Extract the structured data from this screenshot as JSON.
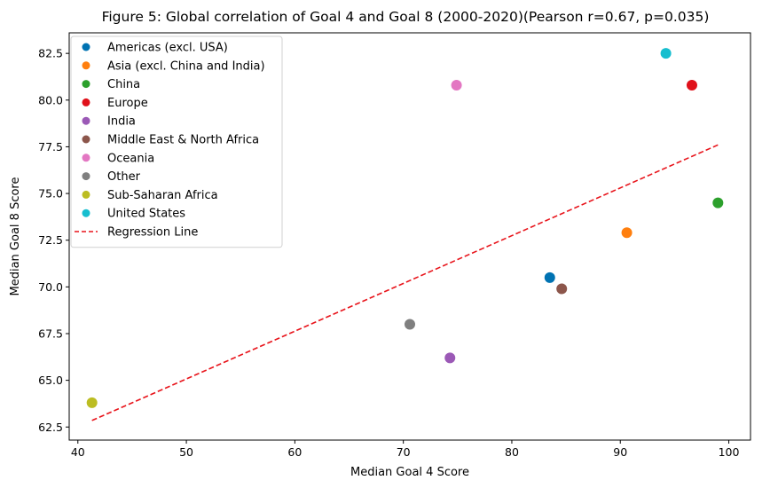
{
  "chart_data": {
    "type": "scatter",
    "title": "Figure 5: Global correlation of Goal 4 and Goal 8 (2000-2020)(Pearson r=0.67, p=0.035)",
    "xlabel": "Median Goal 4 Score",
    "ylabel": "Median Goal 8 Score",
    "xlim": [
      39.2,
      102
    ],
    "ylim": [
      61.8,
      83.6
    ],
    "xticks": [
      40,
      50,
      60,
      70,
      80,
      90,
      100
    ],
    "xtick_labels": [
      "40",
      "50",
      "60",
      "70",
      "80",
      "90",
      "100"
    ],
    "yticks": [
      62.5,
      65.0,
      67.5,
      70.0,
      72.5,
      75.0,
      77.5,
      80.0,
      82.5
    ],
    "ytick_labels": [
      "62.5",
      "65.0",
      "67.5",
      "70.0",
      "72.5",
      "75.0",
      "77.5",
      "80.0",
      "82.5"
    ],
    "grid": false,
    "legend_position": "top-left",
    "series": [
      {
        "name": "Americas (excl. USA)",
        "color": "#0072b2",
        "x": 83.5,
        "y": 70.5
      },
      {
        "name": "Asia (excl. China and India)",
        "color": "#ff7f0e",
        "x": 90.6,
        "y": 72.9
      },
      {
        "name": "China",
        "color": "#2ca02c",
        "x": 99.0,
        "y": 74.5
      },
      {
        "name": "Europe",
        "color": "#e0111b",
        "x": 96.6,
        "y": 80.8
      },
      {
        "name": "India",
        "color": "#9b59b6",
        "x": 74.3,
        "y": 66.2
      },
      {
        "name": "Middle East & North Africa",
        "color": "#8c564b",
        "x": 84.6,
        "y": 69.9
      },
      {
        "name": "Oceania",
        "color": "#e377c2",
        "x": 74.9,
        "y": 80.8
      },
      {
        "name": "Other",
        "color": "#7f7f7f",
        "x": 70.6,
        "y": 68.0
      },
      {
        "name": "Sub-Saharan Africa",
        "color": "#bcbd22",
        "x": 41.3,
        "y": 63.8
      },
      {
        "name": "United States",
        "color": "#17becf",
        "x": 94.2,
        "y": 82.5
      }
    ],
    "regression": {
      "name": "Regression Line",
      "color": "#e8141b",
      "x": [
        41.3,
        99.0
      ],
      "y": [
        62.85,
        77.6
      ]
    }
  }
}
